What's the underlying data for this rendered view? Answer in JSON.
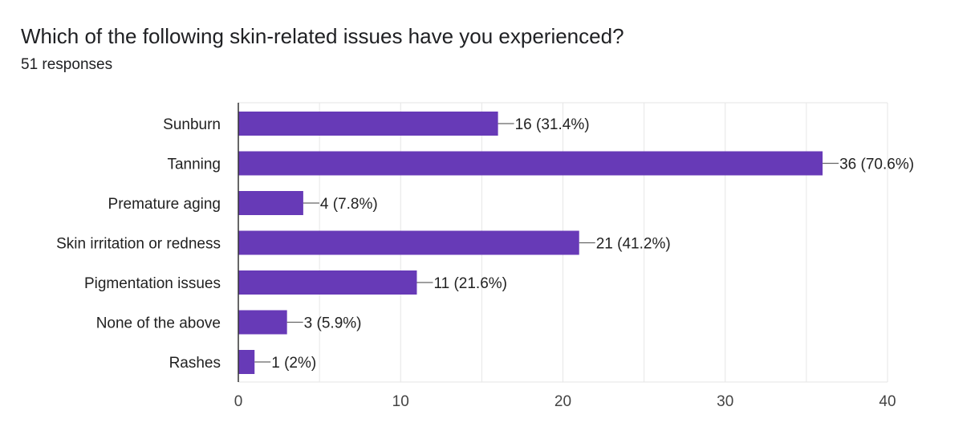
{
  "header": {
    "title": "Which of the following skin-related issues have you experienced?",
    "responses": "51 responses"
  },
  "colors": {
    "bar": "#673ab7",
    "grid": "#e6e6e6",
    "axis": "#333333",
    "connector": "#666666"
  },
  "chart_data": {
    "type": "bar",
    "orientation": "horizontal",
    "title": "Which of the following skin-related issues have you experienced?",
    "categories": [
      "Sunburn",
      "Tanning",
      "Premature aging",
      "Skin irritation or redness",
      "Pigmentation issues",
      "None of the above",
      "Rashes"
    ],
    "values": [
      16,
      36,
      4,
      21,
      11,
      3,
      1
    ],
    "value_labels": [
      "16 (31.4%)",
      "36 (70.6%)",
      "4 (7.8%)",
      "21 (41.2%)",
      "11 (21.6%)",
      "3 (5.9%)",
      "1 (2%)"
    ],
    "xlim": [
      0,
      40
    ],
    "x_ticks": [
      0,
      10,
      20,
      30,
      40
    ],
    "x_tick_labels": [
      "0",
      "10",
      "20",
      "30",
      "40"
    ],
    "grid": true,
    "xlabel": "",
    "ylabel": ""
  }
}
